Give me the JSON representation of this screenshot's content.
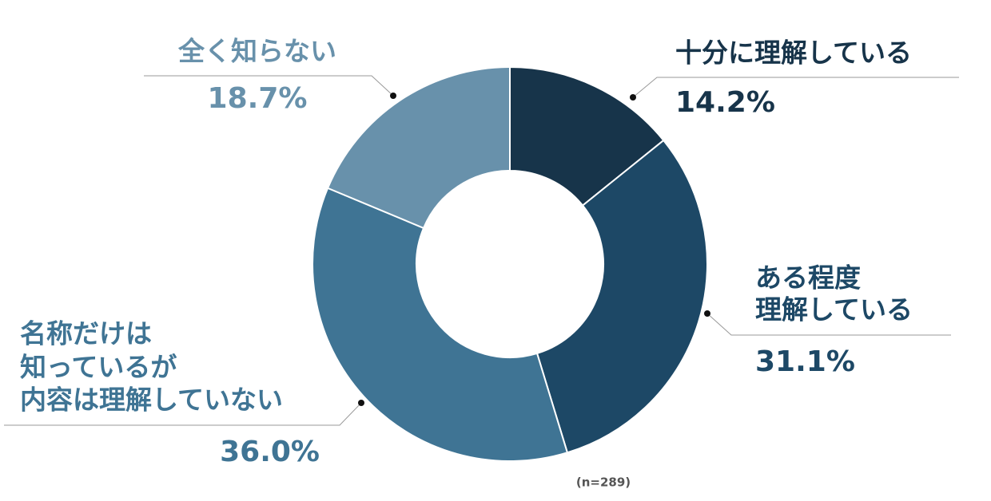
{
  "chart_data": {
    "type": "donut",
    "categories": [
      [
        "十分に理解している"
      ],
      [
        "ある程度",
        "理解している"
      ],
      [
        "名称だけは",
        "知っているが",
        "内容は理解していない"
      ],
      [
        "全く知らない"
      ]
    ],
    "values": [
      14.2,
      31.1,
      36.0,
      18.7
    ],
    "value_labels": [
      "14.2%",
      "31.1%",
      "36.0%",
      "18.7%"
    ],
    "colors": [
      "#17344a",
      "#1d4866",
      "#3f7494",
      "#6891ab"
    ],
    "note": "(n=289)"
  }
}
